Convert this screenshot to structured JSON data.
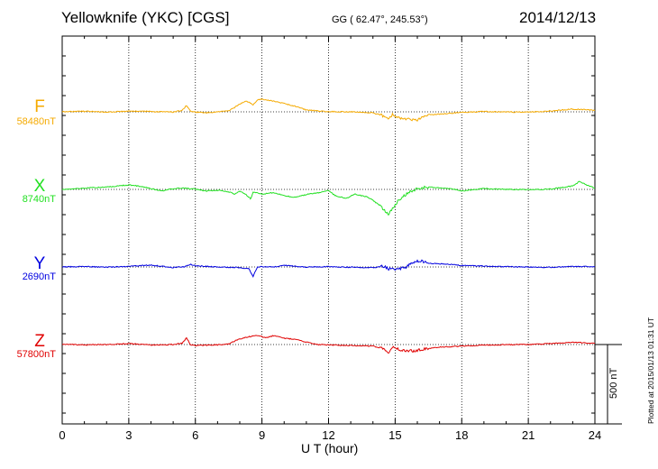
{
  "header": {
    "station": "Yellowknife (YKC)  [CGS]",
    "coords": "GG ( 62.47°, 245.53°)",
    "date": "2014/12/13"
  },
  "footer": {
    "plotted": "Plotted at 2015/01/13 01:31  UT",
    "scale_label": "500 nT"
  },
  "chart_data": {
    "type": "line",
    "xlabel": "U T (hour)",
    "xlim": [
      0,
      24
    ],
    "xticks": [
      0,
      3,
      6,
      9,
      12,
      15,
      18,
      21,
      24
    ],
    "scale_bar_nT": 500,
    "grid": true,
    "series": [
      {
        "name": "F",
        "baseline_label": "58480nT",
        "color": "#f5aa00",
        "baseline": 58480,
        "points": [
          [
            0,
            58481
          ],
          [
            1,
            58484
          ],
          [
            2,
            58478
          ],
          [
            3,
            58485
          ],
          [
            4,
            58482
          ],
          [
            5,
            58479
          ],
          [
            5.4,
            58488
          ],
          [
            5.6,
            58520
          ],
          [
            5.8,
            58482
          ],
          [
            6,
            58478
          ],
          [
            6.5,
            58474
          ],
          [
            7,
            58480
          ],
          [
            7.5,
            58486
          ],
          [
            7.8,
            58510
          ],
          [
            8,
            58530
          ],
          [
            8.3,
            58548
          ],
          [
            8.6,
            58525
          ],
          [
            8.8,
            58555
          ],
          [
            9,
            58560
          ],
          [
            9.5,
            58548
          ],
          [
            10,
            58532
          ],
          [
            10.5,
            58515
          ],
          [
            11,
            58492
          ],
          [
            11.5,
            58486
          ],
          [
            12,
            58482
          ],
          [
            13,
            58480
          ],
          [
            14,
            58474
          ],
          [
            14.5,
            58452
          ],
          [
            14.7,
            58430
          ],
          [
            14.9,
            58465
          ],
          [
            15.1,
            58445
          ],
          [
            15.5,
            58438
          ],
          [
            16,
            58426
          ],
          [
            16.2,
            58452
          ],
          [
            16.5,
            58462
          ],
          [
            17,
            58466
          ],
          [
            18,
            58476
          ],
          [
            19,
            58482
          ],
          [
            20,
            58479
          ],
          [
            21,
            58478
          ],
          [
            22,
            58486
          ],
          [
            23,
            58497
          ],
          [
            23.5,
            58494
          ],
          [
            24,
            58490
          ]
        ]
      },
      {
        "name": "X",
        "baseline_label": "8740nT",
        "color": "#22e022",
        "baseline": 8740,
        "points": [
          [
            0,
            8740
          ],
          [
            1,
            8748
          ],
          [
            2,
            8755
          ],
          [
            3,
            8768
          ],
          [
            3.5,
            8760
          ],
          [
            4,
            8745
          ],
          [
            4.5,
            8730
          ],
          [
            5,
            8745
          ],
          [
            5.5,
            8748
          ],
          [
            6,
            8742
          ],
          [
            6.5,
            8730
          ],
          [
            7,
            8735
          ],
          [
            7.5,
            8725
          ],
          [
            7.8,
            8710
          ],
          [
            8,
            8730
          ],
          [
            8.3,
            8705
          ],
          [
            8.5,
            8680
          ],
          [
            8.6,
            8725
          ],
          [
            9,
            8710
          ],
          [
            9.5,
            8720
          ],
          [
            10,
            8700
          ],
          [
            10.5,
            8690
          ],
          [
            11,
            8708
          ],
          [
            11.5,
            8718
          ],
          [
            12,
            8735
          ],
          [
            12.3,
            8700
          ],
          [
            12.8,
            8685
          ],
          [
            13.2,
            8710
          ],
          [
            13.8,
            8690
          ],
          [
            14.2,
            8650
          ],
          [
            14.5,
            8610
          ],
          [
            14.7,
            8580
          ],
          [
            14.9,
            8620
          ],
          [
            15.2,
            8680
          ],
          [
            15.6,
            8720
          ],
          [
            16,
            8745
          ],
          [
            16.5,
            8755
          ],
          [
            17,
            8750
          ],
          [
            17.5,
            8745
          ],
          [
            18,
            8730
          ],
          [
            18.5,
            8738
          ],
          [
            19,
            8745
          ],
          [
            20,
            8740
          ],
          [
            21,
            8738
          ],
          [
            22,
            8742
          ],
          [
            22.5,
            8752
          ],
          [
            23,
            8762
          ],
          [
            23.3,
            8790
          ],
          [
            23.6,
            8770
          ],
          [
            24,
            8748
          ]
        ]
      },
      {
        "name": "Y",
        "baseline_label": "2690nT",
        "color": "#0000e0",
        "baseline": 2690,
        "points": [
          [
            0,
            2690
          ],
          [
            1,
            2693
          ],
          [
            2,
            2688
          ],
          [
            3,
            2694
          ],
          [
            4,
            2702
          ],
          [
            5,
            2686
          ],
          [
            5.5,
            2692
          ],
          [
            5.8,
            2706
          ],
          [
            6,
            2698
          ],
          [
            7,
            2690
          ],
          [
            8,
            2686
          ],
          [
            8.4,
            2680
          ],
          [
            8.6,
            2630
          ],
          [
            8.8,
            2692
          ],
          [
            9.5,
            2690
          ],
          [
            10,
            2700
          ],
          [
            11,
            2690
          ],
          [
            12,
            2692
          ],
          [
            13,
            2688
          ],
          [
            14,
            2686
          ],
          [
            14.5,
            2694
          ],
          [
            14.7,
            2680
          ],
          [
            15,
            2675
          ],
          [
            15.5,
            2690
          ],
          [
            15.8,
            2720
          ],
          [
            16.1,
            2730
          ],
          [
            16.5,
            2712
          ],
          [
            17,
            2710
          ],
          [
            18,
            2700
          ],
          [
            19,
            2695
          ],
          [
            20,
            2692
          ],
          [
            21,
            2690
          ],
          [
            22,
            2688
          ],
          [
            23,
            2694
          ],
          [
            24,
            2691
          ]
        ]
      },
      {
        "name": "Z",
        "baseline_label": "57800nT",
        "color": "#e00000",
        "baseline": 57800,
        "points": [
          [
            0,
            57802
          ],
          [
            1,
            57798
          ],
          [
            2,
            57800
          ],
          [
            3,
            57806
          ],
          [
            4,
            57797
          ],
          [
            5,
            57800
          ],
          [
            5.4,
            57808
          ],
          [
            5.6,
            57842
          ],
          [
            5.8,
            57796
          ],
          [
            6,
            57794
          ],
          [
            7,
            57798
          ],
          [
            7.5,
            57804
          ],
          [
            7.9,
            57830
          ],
          [
            8.3,
            57845
          ],
          [
            8.7,
            57858
          ],
          [
            9.2,
            57843
          ],
          [
            9.5,
            57856
          ],
          [
            10,
            57840
          ],
          [
            10.5,
            57832
          ],
          [
            11,
            57815
          ],
          [
            11.5,
            57800
          ],
          [
            12,
            57798
          ],
          [
            13,
            57794
          ],
          [
            14,
            57790
          ],
          [
            14.5,
            57770
          ],
          [
            14.7,
            57740
          ],
          [
            14.9,
            57780
          ],
          [
            15.2,
            57768
          ],
          [
            15.8,
            57758
          ],
          [
            16.2,
            57768
          ],
          [
            16.5,
            57775
          ],
          [
            17,
            57784
          ],
          [
            18,
            57790
          ],
          [
            19,
            57796
          ],
          [
            20,
            57799
          ],
          [
            21,
            57800
          ],
          [
            22,
            57806
          ],
          [
            23,
            57814
          ],
          [
            24,
            57808
          ]
        ]
      }
    ]
  }
}
